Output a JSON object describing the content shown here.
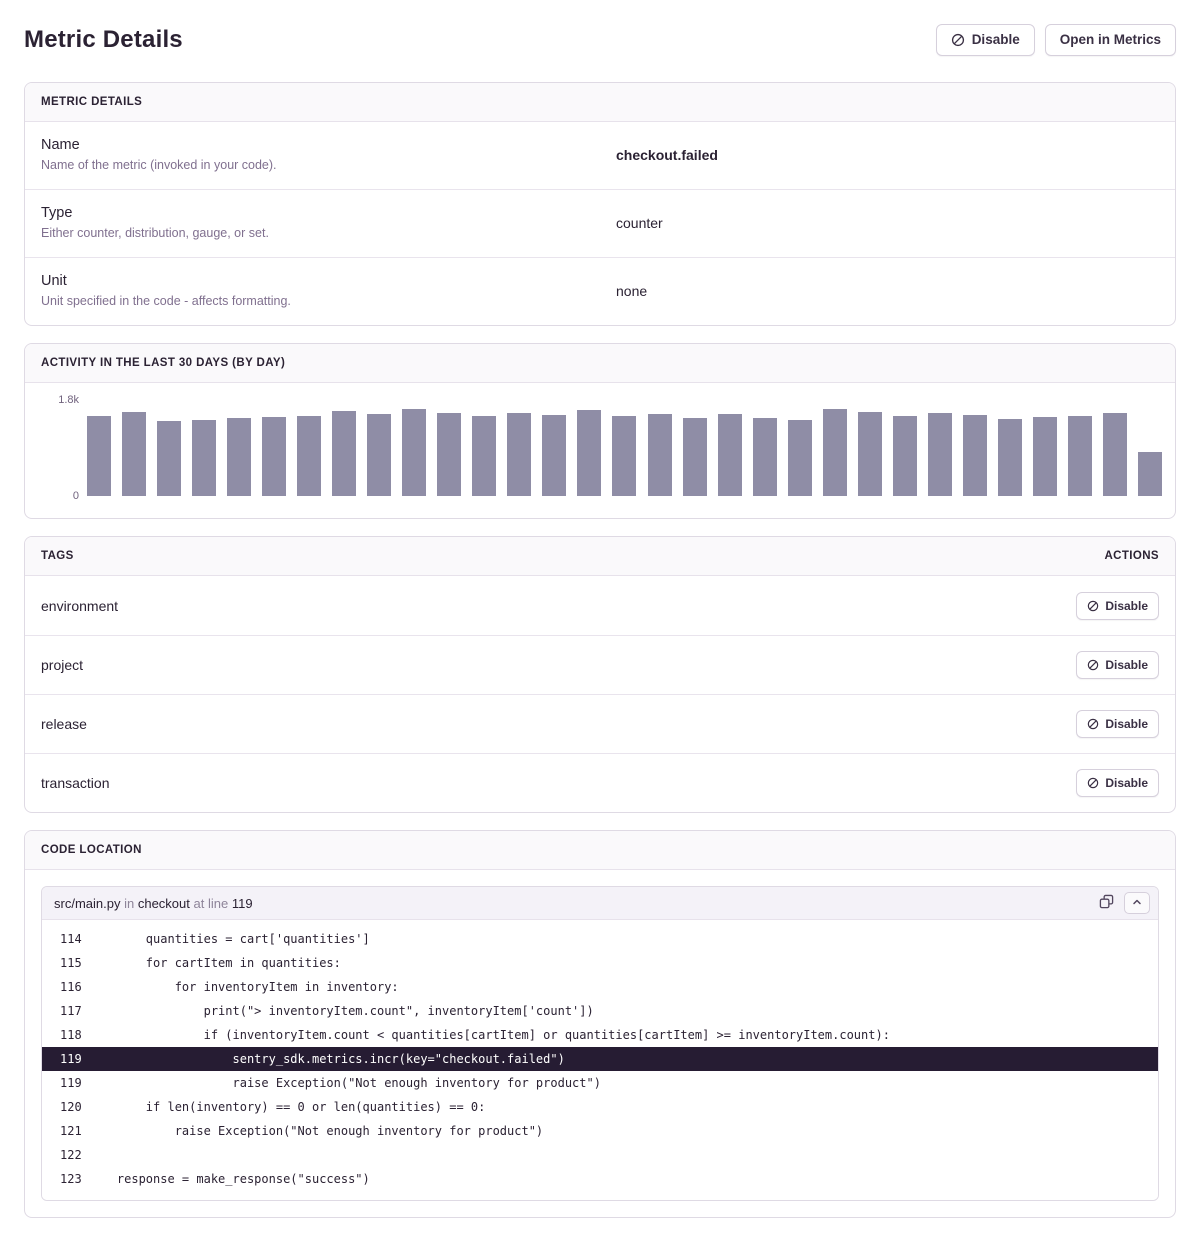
{
  "page": {
    "title": "Metric Details"
  },
  "header": {
    "disable_label": "Disable",
    "open_in_metrics_label": "Open in Metrics"
  },
  "details_panel": {
    "title": "METRIC DETAILS",
    "rows": [
      {
        "label": "Name",
        "description": "Name of the metric (invoked in your code).",
        "value": "checkout.failed",
        "bold": true
      },
      {
        "label": "Type",
        "description": "Either counter, distribution, gauge, or set.",
        "value": "counter",
        "bold": false
      },
      {
        "label": "Unit",
        "description": "Unit specified in the code - affects formatting.",
        "value": "none",
        "bold": false
      }
    ]
  },
  "activity_panel": {
    "title": "ACTIVITY IN THE LAST 30 DAYS (BY DAY)"
  },
  "chart_data": {
    "type": "bar",
    "title": "ACTIVITY IN THE LAST 30 DAYS (BY DAY)",
    "xlabel": "",
    "ylabel": "",
    "ylim": [
      0,
      1800
    ],
    "ytick_labels": {
      "max": "1.8k",
      "min": "0"
    },
    "grid": false,
    "legend": false,
    "bar_color": "#8F8DA6",
    "values": [
      1510,
      1570,
      1410,
      1430,
      1470,
      1490,
      1510,
      1590,
      1530,
      1630,
      1560,
      1510,
      1550,
      1520,
      1610,
      1510,
      1530,
      1470,
      1530,
      1470,
      1430,
      1640,
      1580,
      1500,
      1550,
      1520,
      1440,
      1480,
      1500,
      1550,
      820
    ]
  },
  "tags_panel": {
    "title": "TAGS",
    "actions_title": "ACTIONS",
    "disable_label": "Disable",
    "tags": [
      {
        "name": "environment"
      },
      {
        "name": "project"
      },
      {
        "name": "release"
      },
      {
        "name": "transaction"
      }
    ]
  },
  "code_panel": {
    "title": "CODE LOCATION",
    "frame": {
      "file": "src/main.py",
      "in_word": "in",
      "function": "checkout",
      "at_words": "at line",
      "line_number": "119"
    },
    "lines": [
      {
        "num": "114",
        "code": "        quantities = cart['quantities']",
        "highlighted": false
      },
      {
        "num": "115",
        "code": "        for cartItem in quantities:",
        "highlighted": false
      },
      {
        "num": "116",
        "code": "            for inventoryItem in inventory:",
        "highlighted": false
      },
      {
        "num": "117",
        "code": "                print(\"> inventoryItem.count\", inventoryItem['count'])",
        "highlighted": false
      },
      {
        "num": "118",
        "code": "                if (inventoryItem.count < quantities[cartItem] or quantities[cartItem] >= inventoryItem.count):",
        "highlighted": false
      },
      {
        "num": "119",
        "code": "                    sentry_sdk.metrics.incr(key=\"checkout.failed\")",
        "highlighted": true
      },
      {
        "num": "119",
        "code": "                    raise Exception(\"Not enough inventory for product\")",
        "highlighted": false
      },
      {
        "num": "120",
        "code": "        if len(inventory) == 0 or len(quantities) == 0:",
        "highlighted": false
      },
      {
        "num": "121",
        "code": "            raise Exception(\"Not enough inventory for product\")",
        "highlighted": false
      },
      {
        "num": "122",
        "code": "",
        "highlighted": false
      },
      {
        "num": "123",
        "code": "    response = make_response(\"success\")",
        "highlighted": false
      }
    ]
  }
}
